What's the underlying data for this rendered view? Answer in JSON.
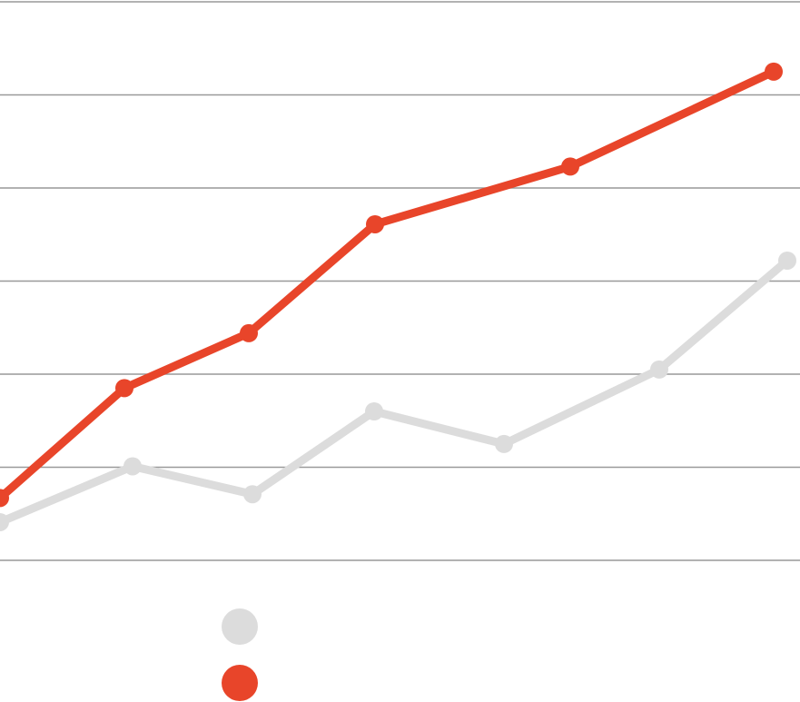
{
  "chart_data": {
    "type": "line",
    "xlim": [
      0,
      8.81
    ],
    "ylim": [
      0,
      6
    ],
    "yticks": [
      0,
      1,
      2,
      3,
      4,
      5,
      6
    ],
    "grid": true,
    "series": [
      {
        "color": "#dcdcdc",
        "x": [
          0,
          1.46,
          2.78,
          4.12,
          5.55,
          7.26,
          8.67
        ],
        "values": [
          0.41,
          1.01,
          0.71,
          1.6,
          1.25,
          2.05,
          3.22
        ]
      },
      {
        "color": "#e8452a",
        "x": [
          0,
          1.37,
          2.74,
          4.13,
          6.28,
          8.52
        ],
        "values": [
          0.67,
          1.85,
          2.44,
          3.61,
          4.23,
          5.25
        ]
      }
    ]
  }
}
